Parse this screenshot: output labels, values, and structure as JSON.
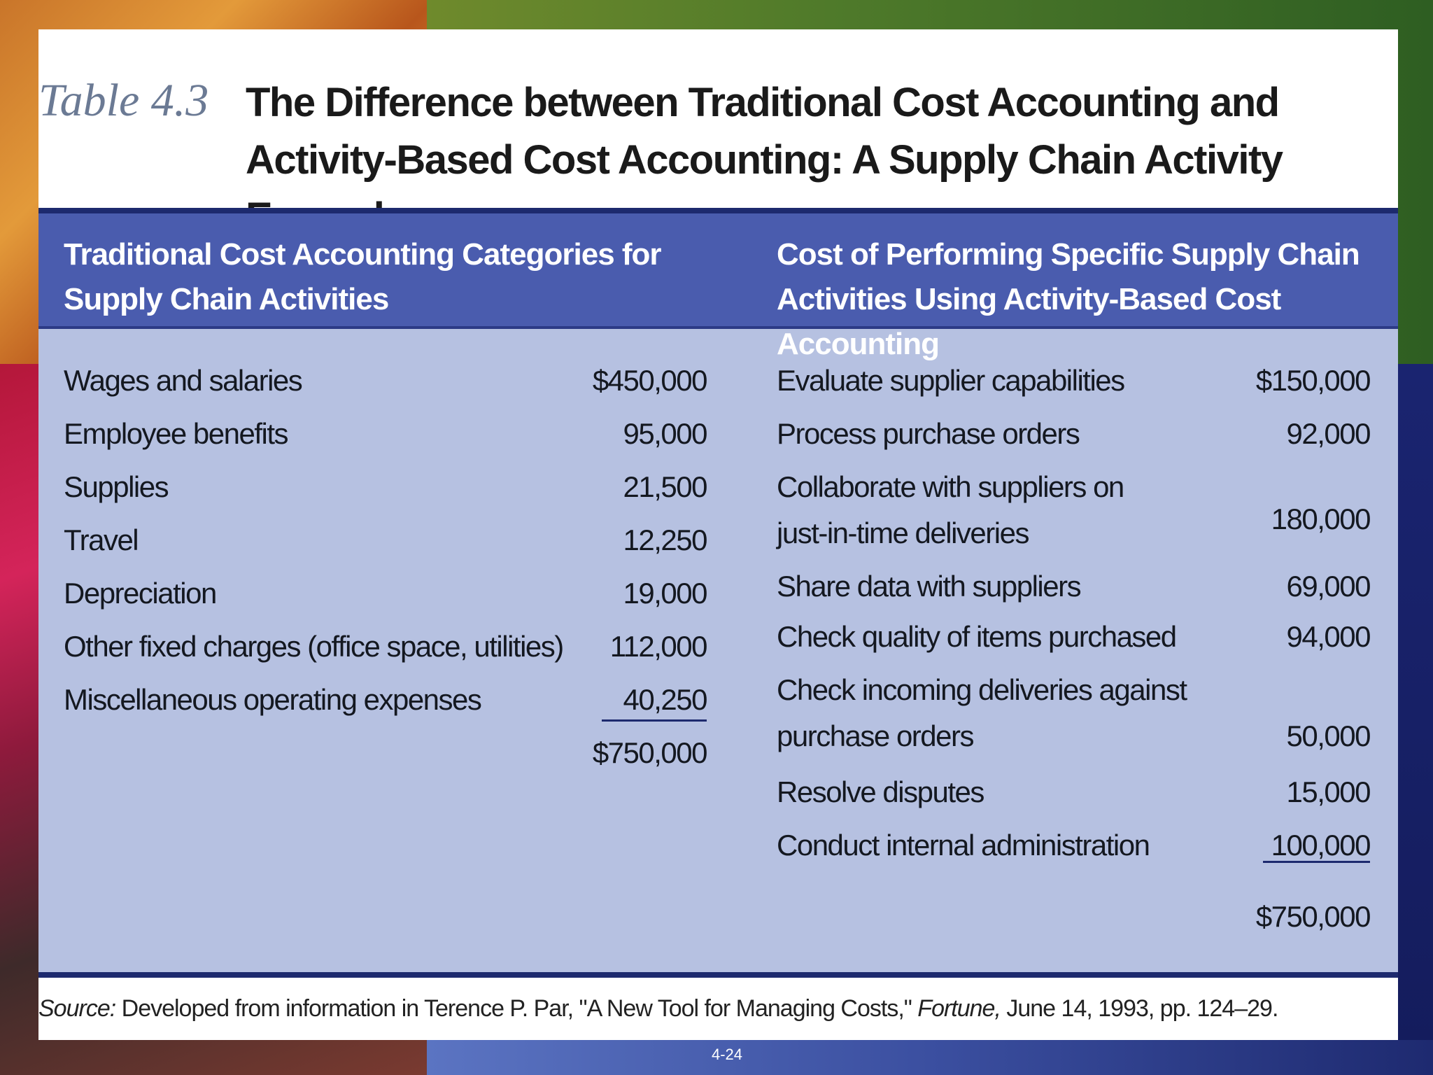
{
  "slide": {
    "table_label": "Table 4.3",
    "title": "The Difference between Traditional Cost Accounting and Activity-Based Cost Accounting: A Supply Chain Activity Example",
    "headers": {
      "left": "Traditional Cost Accounting Categories for Supply Chain Activities",
      "right": "Cost of Performing Specific Supply Chain Activities Using Activity-Based Cost Accounting"
    },
    "left_rows": [
      {
        "label": "Wages and salaries",
        "value": "$450,000"
      },
      {
        "label": "Employee benefits",
        "value": "95,000"
      },
      {
        "label": "Supplies",
        "value": "21,500"
      },
      {
        "label": "Travel",
        "value": "12,250"
      },
      {
        "label": "Depreciation",
        "value": "19,000"
      },
      {
        "label": "Other fixed charges (office space, utilities)",
        "value": "112,000"
      },
      {
        "label": "Miscellaneous operating expenses",
        "value": "40,250"
      }
    ],
    "left_total": "$750,000",
    "right_rows": [
      {
        "label": "Evaluate supplier capabilities",
        "value": "$150,000"
      },
      {
        "label": "Process purchase orders",
        "value": "92,000"
      },
      {
        "label_line1": "Collaborate with suppliers on",
        "label_line2": "just-in-time deliveries",
        "value": "180,000"
      },
      {
        "label": "Share data with suppliers",
        "value": "69,000"
      },
      {
        "label": "Check quality of items purchased",
        "value": "94,000"
      },
      {
        "label_line1": "Check incoming deliveries against",
        "label_line2": "purchase orders",
        "value": "50,000"
      },
      {
        "label": "Resolve disputes",
        "value": "15,000"
      },
      {
        "label": "Conduct internal administration",
        "value": "100,000"
      }
    ],
    "right_total": "$750,000",
    "source_label": "Source:",
    "source_text_1": " Developed from information in Terence P. Par, \"A New Tool for Managing Costs,\" ",
    "source_publication": "Fortune,",
    "source_text_2": " June 14, 1993, pp. 124–29."
  },
  "page_number": "4-24"
}
